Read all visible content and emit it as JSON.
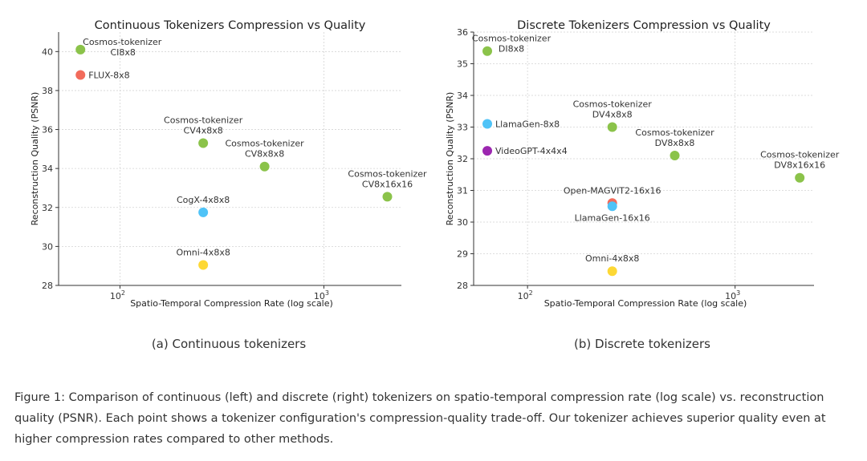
{
  "chart_data": [
    {
      "type": "scatter",
      "title": "Continuous Tokenizers Compression vs Quality",
      "xlabel": "Spatio-Temporal Compression Rate (log scale)",
      "ylabel": "Reconstruction Quality (PSNR)",
      "xscale": "log",
      "xlim": [
        50,
        2400
      ],
      "ylim": [
        28,
        41
      ],
      "xticks": [
        {
          "value": 100,
          "base": "10",
          "exp": "2"
        },
        {
          "value": 1000,
          "base": "10",
          "exp": "3"
        }
      ],
      "yticks": [
        28,
        30,
        32,
        34,
        36,
        38,
        40
      ],
      "grid": true,
      "points": [
        {
          "label": [
            "Cosmos-tokenizer",
            "CI8x8"
          ],
          "x": 64,
          "y": 40.1,
          "color": "#8bc34a",
          "anchor": "right-two"
        },
        {
          "label": [
            "FLUX-8x8"
          ],
          "x": 64,
          "y": 38.8,
          "color": "#f26b5b",
          "anchor": "right"
        },
        {
          "label": [
            "Cosmos-tokenizer",
            "CV4x8x8"
          ],
          "x": 256,
          "y": 35.3,
          "color": "#8bc34a",
          "anchor": "above"
        },
        {
          "label": [
            "Cosmos-tokenizer",
            "CV8x8x8"
          ],
          "x": 512,
          "y": 34.1,
          "color": "#8bc34a",
          "anchor": "above"
        },
        {
          "label": [
            "Cosmos-tokenizer",
            "CV8x16x16"
          ],
          "x": 2048,
          "y": 32.55,
          "color": "#8bc34a",
          "anchor": "above"
        },
        {
          "label": [
            "CogX-4x8x8"
          ],
          "x": 256,
          "y": 31.75,
          "color": "#4fc3f7",
          "anchor": "above"
        },
        {
          "label": [
            "Omni-4x8x8"
          ],
          "x": 256,
          "y": 29.05,
          "color": "#fdd835",
          "anchor": "above"
        }
      ]
    },
    {
      "type": "scatter",
      "title": "Discrete Tokenizers Compression vs Quality",
      "xlabel": "Spatio-Temporal Compression Rate (log scale)",
      "ylabel": "Reconstruction Quality (PSNR)",
      "xscale": "log",
      "xlim": [
        55,
        2400
      ],
      "ylim": [
        28,
        36
      ],
      "xticks": [
        {
          "value": 100,
          "base": "10",
          "exp": "2"
        },
        {
          "value": 1000,
          "base": "10",
          "exp": "3"
        }
      ],
      "yticks": [
        28,
        29,
        30,
        31,
        32,
        33,
        34,
        35,
        36
      ],
      "grid": true,
      "points": [
        {
          "label": [
            "Cosmos-tokenizer",
            "DI8x8"
          ],
          "x": 64,
          "y": 35.4,
          "color": "#8bc34a",
          "anchor": "above-right"
        },
        {
          "label": [
            "LlamaGen-8x8"
          ],
          "x": 64,
          "y": 33.1,
          "color": "#4fc3f7",
          "anchor": "right"
        },
        {
          "label": [
            "VideoGPT-4x4x4"
          ],
          "x": 64,
          "y": 32.25,
          "color": "#9c27b0",
          "anchor": "right"
        },
        {
          "label": [
            "Cosmos-tokenizer",
            "DV4x8x8"
          ],
          "x": 256,
          "y": 33.0,
          "color": "#8bc34a",
          "anchor": "above"
        },
        {
          "label": [
            "Cosmos-tokenizer",
            "DV8x8x8"
          ],
          "x": 512,
          "y": 32.1,
          "color": "#8bc34a",
          "anchor": "above"
        },
        {
          "label": [
            "Cosmos-tokenizer",
            "DV8x16x16"
          ],
          "x": 2048,
          "y": 31.4,
          "color": "#8bc34a",
          "anchor": "above"
        },
        {
          "label": [
            "Open-MAGVIT2-16x16"
          ],
          "x": 256,
          "y": 30.6,
          "color": "#f26b5b",
          "anchor": "above"
        },
        {
          "label": [
            "LlamaGen-16x16"
          ],
          "x": 256,
          "y": 30.5,
          "color": "#4fc3f7",
          "anchor": "below"
        },
        {
          "label": [
            "Omni-4x8x8"
          ],
          "x": 256,
          "y": 28.45,
          "color": "#fdd835",
          "anchor": "above"
        }
      ]
    }
  ],
  "subcaptions": {
    "left": "(a) Continuous tokenizers",
    "right": "(b) Discrete tokenizers"
  },
  "caption": "Figure 1: Comparison of continuous (left) and discrete (right) tokenizers on spatio-temporal compression rate (log scale) vs. reconstruction quality (PSNR). Each point shows a tokenizer configuration's compression-quality trade-off. Our tokenizer achieves superior quality even at higher compression rates compared to other methods."
}
